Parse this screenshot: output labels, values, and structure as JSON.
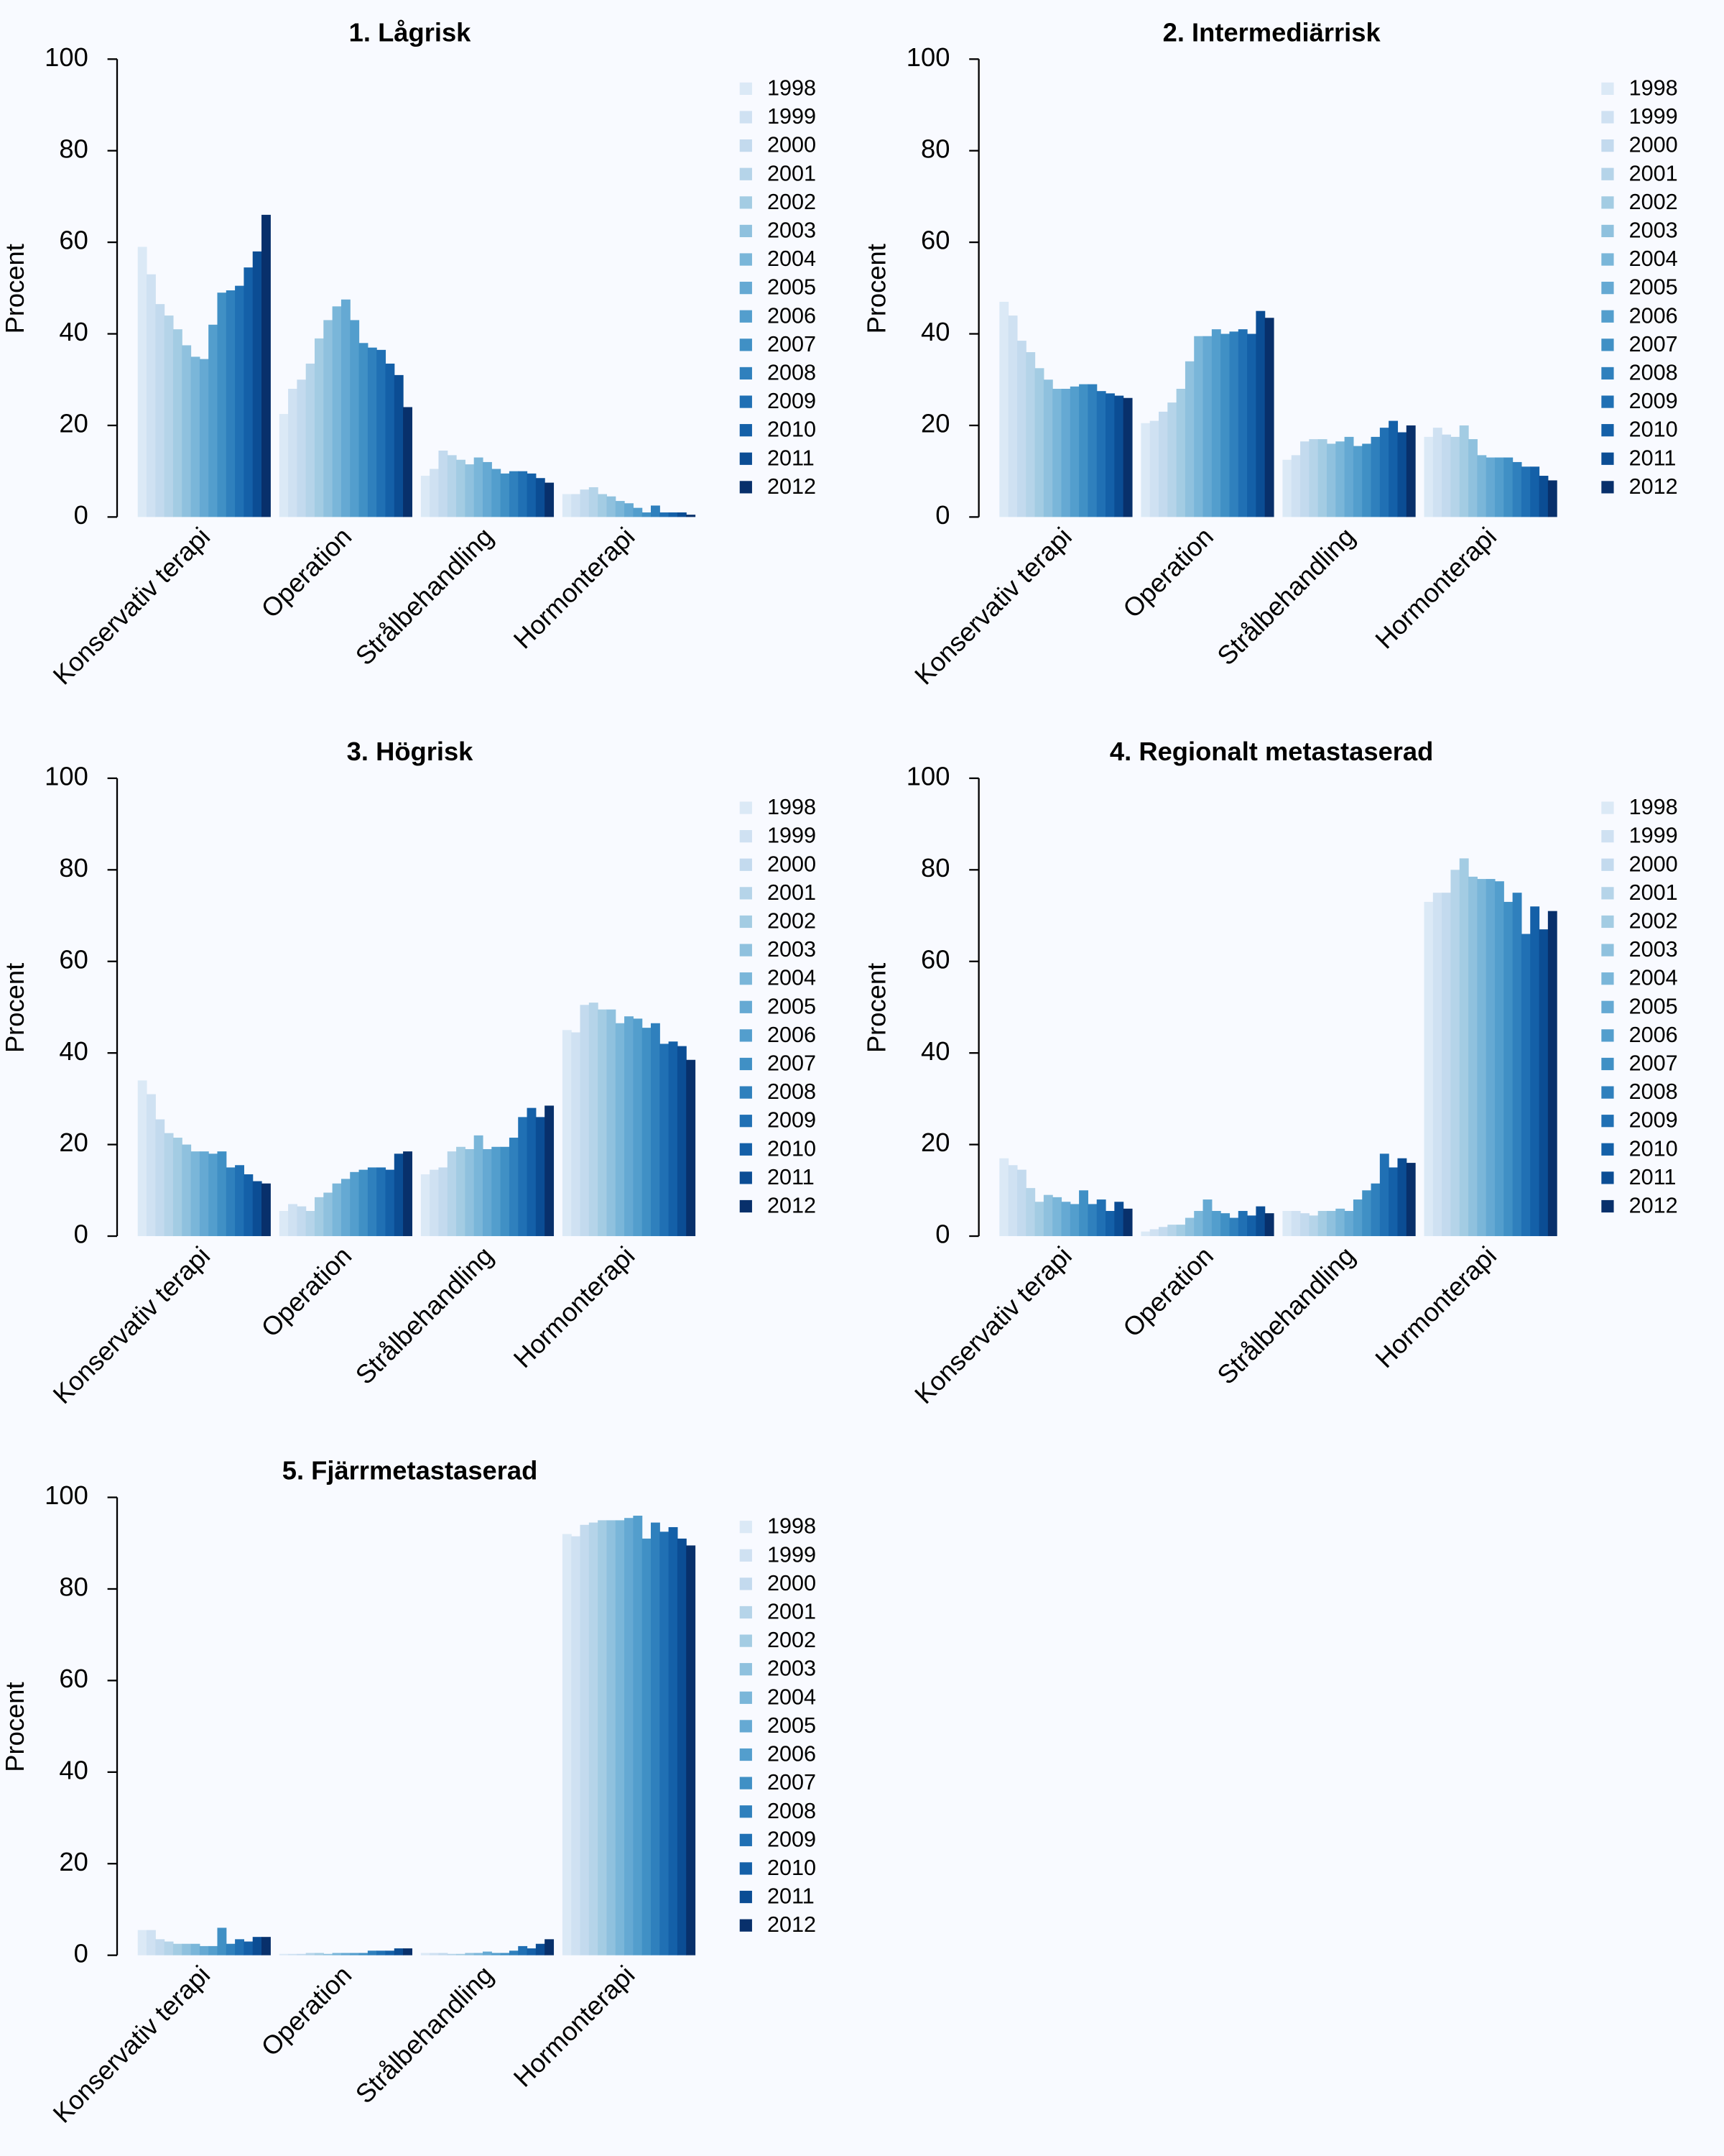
{
  "chart_data": [
    {
      "type": "bar",
      "title": "1. Lågrisk",
      "ylabel": "Procent",
      "categories": [
        "Konservativ terapi",
        "Operation",
        "Strålbehandling",
        "Hormonterapi"
      ],
      "ylim": [
        0,
        100
      ],
      "yticks": [
        0,
        20,
        40,
        60,
        80,
        100
      ],
      "series": [
        {
          "name": "1998",
          "color": "#dbe9f6",
          "values": [
            59,
            22.5,
            9,
            5
          ]
        },
        {
          "name": "1999",
          "color": "#cfe1f2",
          "values": [
            53,
            28,
            10.5,
            5
          ]
        },
        {
          "name": "2000",
          "color": "#c3daee",
          "values": [
            46.5,
            30,
            14.5,
            6
          ]
        },
        {
          "name": "2001",
          "color": "#b5d4e9",
          "values": [
            44,
            33.5,
            13.5,
            6.5
          ]
        },
        {
          "name": "2002",
          "color": "#a3cce3",
          "values": [
            41,
            39,
            12.5,
            5
          ]
        },
        {
          "name": "2003",
          "color": "#8fc1de",
          "values": [
            37.5,
            43,
            11.5,
            4.5
          ]
        },
        {
          "name": "2004",
          "color": "#7ab6d9",
          "values": [
            35,
            46,
            13,
            3.5
          ]
        },
        {
          "name": "2005",
          "color": "#65a9d3",
          "values": [
            34.5,
            47.5,
            12,
            3
          ]
        },
        {
          "name": "2006",
          "color": "#539ecd",
          "values": [
            42,
            43,
            10.5,
            2
          ]
        },
        {
          "name": "2007",
          "color": "#4090c5",
          "values": [
            49,
            38,
            9.5,
            1
          ]
        },
        {
          "name": "2008",
          "color": "#2f80bd",
          "values": [
            49.5,
            37,
            10,
            2.5
          ]
        },
        {
          "name": "2009",
          "color": "#2070b4",
          "values": [
            50.5,
            36.5,
            10,
            1
          ]
        },
        {
          "name": "2010",
          "color": "#1460a8",
          "values": [
            54.5,
            33.5,
            9.5,
            1
          ]
        },
        {
          "name": "2011",
          "color": "#0b4d94",
          "values": [
            58,
            31,
            8.5,
            1
          ]
        },
        {
          "name": "2012",
          "color": "#08306b",
          "values": [
            66,
            24,
            7.5,
            0.5
          ]
        }
      ]
    },
    {
      "type": "bar",
      "title": "2. Intermediärrisk",
      "ylabel": "Procent",
      "categories": [
        "Konservativ terapi",
        "Operation",
        "Strålbehandling",
        "Hormonterapi"
      ],
      "ylim": [
        0,
        100
      ],
      "yticks": [
        0,
        20,
        40,
        60,
        80,
        100
      ],
      "series": [
        {
          "name": "1998",
          "color": "#dbe9f6",
          "values": [
            47,
            20.5,
            12.5,
            17.5
          ]
        },
        {
          "name": "1999",
          "color": "#cfe1f2",
          "values": [
            44,
            21,
            13.5,
            19.5
          ]
        },
        {
          "name": "2000",
          "color": "#c3daee",
          "values": [
            38.5,
            23,
            16.5,
            18
          ]
        },
        {
          "name": "2001",
          "color": "#b5d4e9",
          "values": [
            36,
            25,
            17,
            17.5
          ]
        },
        {
          "name": "2002",
          "color": "#a3cce3",
          "values": [
            32.5,
            28,
            17,
            20
          ]
        },
        {
          "name": "2003",
          "color": "#8fc1de",
          "values": [
            30,
            34,
            16,
            17
          ]
        },
        {
          "name": "2004",
          "color": "#7ab6d9",
          "values": [
            28,
            39.5,
            16.5,
            13.5
          ]
        },
        {
          "name": "2005",
          "color": "#65a9d3",
          "values": [
            28,
            39.5,
            17.5,
            13
          ]
        },
        {
          "name": "2006",
          "color": "#539ecd",
          "values": [
            28.5,
            41,
            15.5,
            13
          ]
        },
        {
          "name": "2007",
          "color": "#4090c5",
          "values": [
            29,
            40,
            16,
            13
          ]
        },
        {
          "name": "2008",
          "color": "#2f80bd",
          "values": [
            29,
            40.5,
            17.5,
            12
          ]
        },
        {
          "name": "2009",
          "color": "#2070b4",
          "values": [
            27.5,
            41,
            19.5,
            11
          ]
        },
        {
          "name": "2010",
          "color": "#1460a8",
          "values": [
            27,
            40,
            21,
            11
          ]
        },
        {
          "name": "2011",
          "color": "#0b4d94",
          "values": [
            26.5,
            45,
            18.5,
            9
          ]
        },
        {
          "name": "2012",
          "color": "#08306b",
          "values": [
            26,
            43.5,
            20,
            8
          ]
        }
      ]
    },
    {
      "type": "bar",
      "title": "3. Högrisk",
      "ylabel": "Procent",
      "categories": [
        "Konservativ terapi",
        "Operation",
        "Strålbehandling",
        "Hormonterapi"
      ],
      "ylim": [
        0,
        100
      ],
      "yticks": [
        0,
        20,
        40,
        60,
        80,
        100
      ],
      "series": [
        {
          "name": "1998",
          "color": "#dbe9f6",
          "values": [
            34,
            5.5,
            13.5,
            45
          ]
        },
        {
          "name": "1999",
          "color": "#cfe1f2",
          "values": [
            31,
            7,
            14.5,
            44.5
          ]
        },
        {
          "name": "2000",
          "color": "#c3daee",
          "values": [
            25.5,
            6.5,
            15,
            50.5
          ]
        },
        {
          "name": "2001",
          "color": "#b5d4e9",
          "values": [
            22.5,
            5.5,
            18.5,
            51
          ]
        },
        {
          "name": "2002",
          "color": "#a3cce3",
          "values": [
            21.5,
            8.5,
            19.5,
            49.5
          ]
        },
        {
          "name": "2003",
          "color": "#8fc1de",
          "values": [
            20,
            9.5,
            19,
            49.5
          ]
        },
        {
          "name": "2004",
          "color": "#7ab6d9",
          "values": [
            18.5,
            11.5,
            22,
            46.5
          ]
        },
        {
          "name": "2005",
          "color": "#65a9d3",
          "values": [
            18.5,
            12.5,
            19,
            48
          ]
        },
        {
          "name": "2006",
          "color": "#539ecd",
          "values": [
            18,
            14,
            19.5,
            47.5
          ]
        },
        {
          "name": "2007",
          "color": "#4090c5",
          "values": [
            18.5,
            14.5,
            19.5,
            45.5
          ]
        },
        {
          "name": "2008",
          "color": "#2f80bd",
          "values": [
            15,
            15,
            21.5,
            46.5
          ]
        },
        {
          "name": "2009",
          "color": "#2070b4",
          "values": [
            15.5,
            15,
            26,
            42
          ]
        },
        {
          "name": "2010",
          "color": "#1460a8",
          "values": [
            13.5,
            14.5,
            28,
            42.5
          ]
        },
        {
          "name": "2011",
          "color": "#0b4d94",
          "values": [
            12,
            18,
            26,
            41.5
          ]
        },
        {
          "name": "2012",
          "color": "#08306b",
          "values": [
            11.5,
            18.5,
            28.5,
            38.5
          ]
        }
      ]
    },
    {
      "type": "bar",
      "title": "4. Regionalt metastaserad",
      "ylabel": "Procent",
      "categories": [
        "Konservativ terapi",
        "Operation",
        "Strålbehandling",
        "Hormonterapi"
      ],
      "ylim": [
        0,
        100
      ],
      "yticks": [
        0,
        20,
        40,
        60,
        80,
        100
      ],
      "series": [
        {
          "name": "1998",
          "color": "#dbe9f6",
          "values": [
            17,
            1,
            5.5,
            73
          ]
        },
        {
          "name": "1999",
          "color": "#cfe1f2",
          "values": [
            15.5,
            1.5,
            5.5,
            75
          ]
        },
        {
          "name": "2000",
          "color": "#c3daee",
          "values": [
            14.5,
            2,
            5,
            75
          ]
        },
        {
          "name": "2001",
          "color": "#b5d4e9",
          "values": [
            10.5,
            2.5,
            4.5,
            80
          ]
        },
        {
          "name": "2002",
          "color": "#a3cce3",
          "values": [
            7.5,
            2.5,
            5.5,
            82.5
          ]
        },
        {
          "name": "2003",
          "color": "#8fc1de",
          "values": [
            9,
            4,
            5.5,
            78.5
          ]
        },
        {
          "name": "2004",
          "color": "#7ab6d9",
          "values": [
            8.5,
            5.5,
            6,
            78
          ]
        },
        {
          "name": "2005",
          "color": "#65a9d3",
          "values": [
            7.5,
            8,
            5.5,
            78
          ]
        },
        {
          "name": "2006",
          "color": "#539ecd",
          "values": [
            7,
            5.5,
            8,
            77.5
          ]
        },
        {
          "name": "2007",
          "color": "#4090c5",
          "values": [
            10,
            5,
            10,
            73
          ]
        },
        {
          "name": "2008",
          "color": "#2f80bd",
          "values": [
            7,
            4,
            11.5,
            75
          ]
        },
        {
          "name": "2009",
          "color": "#2070b4",
          "values": [
            8,
            5.5,
            18,
            66
          ]
        },
        {
          "name": "2010",
          "color": "#1460a8",
          "values": [
            5.5,
            4.5,
            15,
            72
          ]
        },
        {
          "name": "2011",
          "color": "#0b4d94",
          "values": [
            7.5,
            6.5,
            17,
            67
          ]
        },
        {
          "name": "2012",
          "color": "#08306b",
          "values": [
            6,
            5,
            16,
            71
          ]
        }
      ]
    },
    {
      "type": "bar",
      "title": "5. Fjärrmetastaserad",
      "ylabel": "Procent",
      "categories": [
        "Konservativ terapi",
        "Operation",
        "Strålbehandling",
        "Hormonterapi"
      ],
      "ylim": [
        0,
        100
      ],
      "yticks": [
        0,
        20,
        40,
        60,
        80,
        100
      ],
      "series": [
        {
          "name": "1998",
          "color": "#dbe9f6",
          "values": [
            5.5,
            0.3,
            0.5,
            92
          ]
        },
        {
          "name": "1999",
          "color": "#cfe1f2",
          "values": [
            5.5,
            0.3,
            0.5,
            91.5
          ]
        },
        {
          "name": "2000",
          "color": "#c3daee",
          "values": [
            3.5,
            0.3,
            0.5,
            94
          ]
        },
        {
          "name": "2001",
          "color": "#b5d4e9",
          "values": [
            3,
            0.5,
            0.3,
            94.5
          ]
        },
        {
          "name": "2002",
          "color": "#a3cce3",
          "values": [
            2.5,
            0.5,
            0.3,
            95
          ]
        },
        {
          "name": "2003",
          "color": "#8fc1de",
          "values": [
            2.5,
            0.3,
            0.5,
            95
          ]
        },
        {
          "name": "2004",
          "color": "#7ab6d9",
          "values": [
            2.5,
            0.5,
            0.5,
            95
          ]
        },
        {
          "name": "2005",
          "color": "#65a9d3",
          "values": [
            2,
            0.5,
            0.8,
            95.5
          ]
        },
        {
          "name": "2006",
          "color": "#539ecd",
          "values": [
            2,
            0.5,
            0.5,
            96
          ]
        },
        {
          "name": "2007",
          "color": "#4090c5",
          "values": [
            6,
            0.5,
            0.5,
            91
          ]
        },
        {
          "name": "2008",
          "color": "#2f80bd",
          "values": [
            2.5,
            1,
            1,
            94.5
          ]
        },
        {
          "name": "2009",
          "color": "#2070b4",
          "values": [
            3.5,
            1,
            2,
            92.5
          ]
        },
        {
          "name": "2010",
          "color": "#1460a8",
          "values": [
            3,
            1,
            1.5,
            93.5
          ]
        },
        {
          "name": "2011",
          "color": "#0b4d94",
          "values": [
            4,
            1.5,
            2.5,
            91
          ]
        },
        {
          "name": "2012",
          "color": "#08306b",
          "values": [
            4,
            1.5,
            3.5,
            89.5
          ]
        }
      ]
    }
  ]
}
